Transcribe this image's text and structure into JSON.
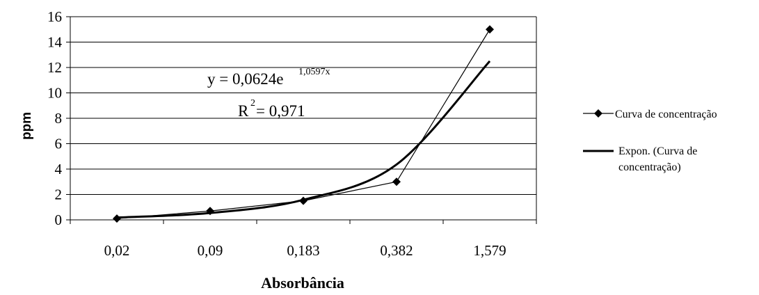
{
  "chart_data": {
    "type": "line",
    "categories": [
      "0,02",
      "0,09",
      "0,183",
      "0,382",
      "1,579"
    ],
    "series": [
      {
        "name": "Curva de concentração",
        "values": [
          0.1,
          0.7,
          1.5,
          3.0,
          15.0
        ],
        "marker": "diamond",
        "color": "#000000"
      }
    ],
    "trendline": {
      "type": "exponential",
      "legend_lines": [
        "Expon. (Curva de",
        "concentração)"
      ],
      "a": 0.0624,
      "b": 1.0597,
      "values": [
        0.18,
        0.54,
        1.58,
        4.36,
        12.5
      ]
    },
    "equation": {
      "base": "y = 0,0624e",
      "exponent": "1,0597x",
      "r2_label": "R",
      "r2_sup": "2",
      "r2_value": " = 0,971"
    },
    "xlabel": "Absorbância",
    "ylabel": "ppm",
    "ylim": [
      0,
      16
    ],
    "yticks": [
      0,
      2,
      4,
      6,
      8,
      10,
      12,
      14,
      16
    ],
    "grid": true,
    "legend_position": "right"
  }
}
